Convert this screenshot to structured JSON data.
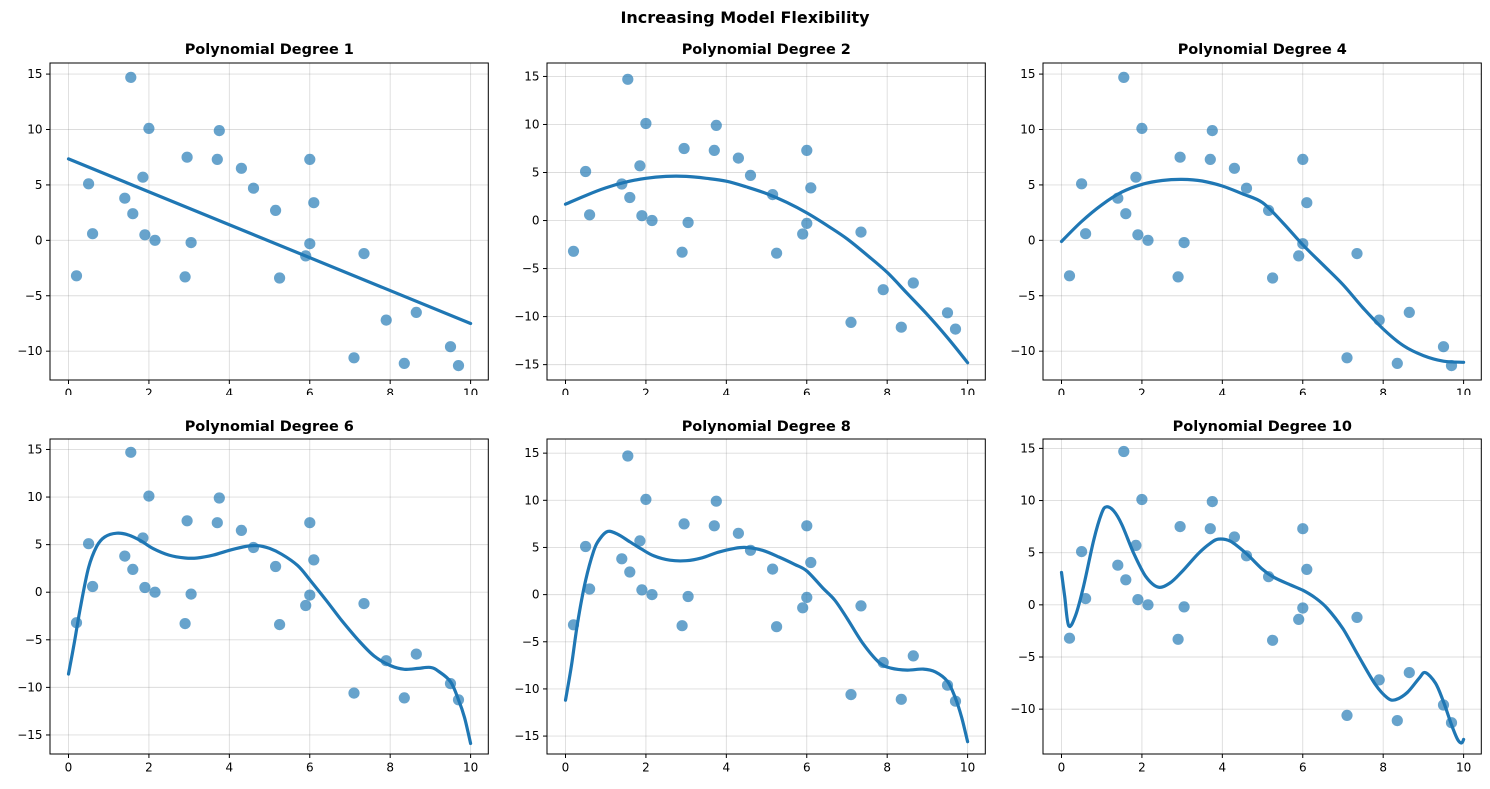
{
  "figure": {
    "title": "Increasing Model Flexibility"
  },
  "colors": {
    "curve": "#1f77b4",
    "scatter_fill": "rgba(31,119,180,0.68)",
    "grid": "rgba(128,128,128,0.28)",
    "spine": "#000000",
    "tick_label": "#000000",
    "background": "#ffffff"
  },
  "chart_data": {
    "type": "scatter",
    "title": "Increasing Model Flexibility",
    "xlabel": "",
    "ylabel": "",
    "legend": "none",
    "grid": true,
    "description": "Six subplots sharing the same 30 scatter points, each overlaid with a polynomial fit curve of increasing degree",
    "scatter": [
      [
        0.2,
        -3.2
      ],
      [
        0.5,
        5.1
      ],
      [
        0.6,
        0.6
      ],
      [
        1.4,
        3.8
      ],
      [
        1.55,
        14.7
      ],
      [
        1.6,
        2.4
      ],
      [
        1.85,
        5.7
      ],
      [
        1.9,
        0.5
      ],
      [
        2.0,
        10.1
      ],
      [
        2.15,
        0.0
      ],
      [
        2.9,
        -3.3
      ],
      [
        2.95,
        7.5
      ],
      [
        3.05,
        -0.2
      ],
      [
        3.7,
        7.3
      ],
      [
        3.75,
        9.9
      ],
      [
        4.3,
        6.5
      ],
      [
        4.6,
        4.7
      ],
      [
        5.15,
        2.7
      ],
      [
        5.25,
        -3.4
      ],
      [
        5.9,
        -1.4
      ],
      [
        6.0,
        -0.3
      ],
      [
        6.0,
        7.3
      ],
      [
        6.1,
        3.4
      ],
      [
        7.1,
        -10.6
      ],
      [
        7.35,
        -1.2
      ],
      [
        7.9,
        -7.2
      ],
      [
        8.35,
        -11.1
      ],
      [
        8.65,
        -6.5
      ],
      [
        9.5,
        -9.6
      ],
      [
        9.7,
        -11.3
      ]
    ],
    "xlim": [
      -0.46,
      10.44
    ],
    "xticks": [
      0,
      2,
      4,
      6,
      8,
      10
    ],
    "subplots": [
      {
        "title": "Polynomial Degree 1",
        "degree": 1,
        "ylim": [
          -12.6,
          16.0
        ],
        "yticks": [
          15,
          10,
          5,
          0,
          -5,
          -10
        ],
        "curve_points": [
          [
            0,
            7.35
          ],
          [
            10,
            -7.5
          ]
        ]
      },
      {
        "title": "Polynomial Degree 2",
        "degree": 2,
        "ylim": [
          -16.6,
          16.4
        ],
        "yticks": [
          15,
          10,
          5,
          0,
          -5,
          -10,
          -15
        ],
        "curve_points": [
          [
            0,
            1.7
          ],
          [
            0.5,
            2.6
          ],
          [
            1,
            3.4
          ],
          [
            1.5,
            4.0
          ],
          [
            2,
            4.4
          ],
          [
            2.5,
            4.6
          ],
          [
            3,
            4.6
          ],
          [
            3.5,
            4.4
          ],
          [
            4,
            4.1
          ],
          [
            4.5,
            3.5
          ],
          [
            5,
            2.8
          ],
          [
            5.5,
            1.9
          ],
          [
            6,
            0.8
          ],
          [
            6.5,
            -0.5
          ],
          [
            7,
            -1.9
          ],
          [
            7.5,
            -3.6
          ],
          [
            8,
            -5.4
          ],
          [
            8.5,
            -7.6
          ],
          [
            9,
            -9.8
          ],
          [
            9.5,
            -12.2
          ],
          [
            10,
            -14.8
          ]
        ]
      },
      {
        "title": "Polynomial Degree 4",
        "degree": 4,
        "ylim": [
          -12.6,
          16.0
        ],
        "yticks": [
          15,
          10,
          5,
          0,
          -5,
          -10
        ],
        "curve_points": [
          [
            0,
            -0.1
          ],
          [
            0.5,
            1.7
          ],
          [
            1,
            3.2
          ],
          [
            1.5,
            4.35
          ],
          [
            2,
            5.05
          ],
          [
            2.5,
            5.4
          ],
          [
            3,
            5.5
          ],
          [
            3.5,
            5.35
          ],
          [
            4,
            4.9
          ],
          [
            4.5,
            4.2
          ],
          [
            5,
            3.4
          ],
          [
            5.5,
            1.6
          ],
          [
            6,
            -0.4
          ],
          [
            6.5,
            -2.2
          ],
          [
            7,
            -4.0
          ],
          [
            7.5,
            -6.1
          ],
          [
            8,
            -8.0
          ],
          [
            8.5,
            -9.5
          ],
          [
            9,
            -10.4
          ],
          [
            9.5,
            -10.9
          ],
          [
            10,
            -11.0
          ]
        ]
      },
      {
        "title": "Polynomial Degree 6",
        "degree": 6,
        "ylim": [
          -17.0,
          16.1
        ],
        "yticks": [
          15,
          10,
          5,
          0,
          -5,
          -10,
          -15
        ],
        "curve_points": [
          [
            0,
            -8.6
          ],
          [
            0.15,
            -5.2
          ],
          [
            0.3,
            -1.5
          ],
          [
            0.5,
            2.6
          ],
          [
            0.7,
            4.8
          ],
          [
            0.9,
            5.8
          ],
          [
            1.2,
            6.2
          ],
          [
            1.5,
            6.0
          ],
          [
            1.8,
            5.4
          ],
          [
            2.1,
            4.6
          ],
          [
            2.5,
            3.9
          ],
          [
            2.9,
            3.6
          ],
          [
            3.2,
            3.6
          ],
          [
            3.6,
            3.9
          ],
          [
            4.0,
            4.4
          ],
          [
            4.4,
            4.8
          ],
          [
            4.7,
            4.9
          ],
          [
            5.0,
            4.6
          ],
          [
            5.3,
            4.0
          ],
          [
            5.7,
            2.8
          ],
          [
            6.0,
            1.3
          ],
          [
            6.4,
            -0.8
          ],
          [
            6.8,
            -3.0
          ],
          [
            7.2,
            -5.0
          ],
          [
            7.6,
            -6.7
          ],
          [
            8.0,
            -7.7
          ],
          [
            8.35,
            -8.1
          ],
          [
            8.7,
            -8.0
          ],
          [
            9.0,
            -7.9
          ],
          [
            9.2,
            -8.3
          ],
          [
            9.5,
            -9.4
          ],
          [
            9.7,
            -11.3
          ],
          [
            9.85,
            -13.2
          ],
          [
            10,
            -15.9
          ]
        ]
      },
      {
        "title": "Polynomial Degree 8",
        "degree": 8,
        "ylim": [
          -16.9,
          16.5
        ],
        "yticks": [
          15,
          10,
          5,
          0,
          -5,
          -10,
          -15
        ],
        "curve_points": [
          [
            0,
            -11.2
          ],
          [
            0.15,
            -7.5
          ],
          [
            0.3,
            -3.0
          ],
          [
            0.5,
            1.5
          ],
          [
            0.7,
            4.6
          ],
          [
            0.85,
            5.9
          ],
          [
            1.05,
            6.7
          ],
          [
            1.3,
            6.4
          ],
          [
            1.6,
            5.6
          ],
          [
            1.9,
            4.8
          ],
          [
            2.2,
            4.1
          ],
          [
            2.6,
            3.65
          ],
          [
            3.0,
            3.6
          ],
          [
            3.4,
            3.9
          ],
          [
            3.8,
            4.5
          ],
          [
            4.2,
            4.9
          ],
          [
            4.5,
            5.0
          ],
          [
            4.9,
            4.7
          ],
          [
            5.3,
            4.0
          ],
          [
            5.7,
            3.2
          ],
          [
            6.0,
            2.5
          ],
          [
            6.4,
            0.7
          ],
          [
            6.7,
            -0.6
          ],
          [
            7.0,
            -2.5
          ],
          [
            7.4,
            -5.2
          ],
          [
            7.8,
            -7.2
          ],
          [
            8.1,
            -7.8
          ],
          [
            8.5,
            -8.0
          ],
          [
            8.9,
            -7.9
          ],
          [
            9.2,
            -8.2
          ],
          [
            9.5,
            -9.2
          ],
          [
            9.7,
            -11.0
          ],
          [
            9.85,
            -13.0
          ],
          [
            10,
            -15.6
          ]
        ]
      },
      {
        "title": "Polynomial Degree 10",
        "degree": 10,
        "ylim": [
          -14.3,
          15.9
        ],
        "yticks": [
          15,
          10,
          5,
          0,
          -5,
          -10
        ],
        "curve_points": [
          [
            0,
            3.1
          ],
          [
            0.08,
            0.8
          ],
          [
            0.18,
            -2.0
          ],
          [
            0.35,
            -1.0
          ],
          [
            0.55,
            1.8
          ],
          [
            0.8,
            6.2
          ],
          [
            1.0,
            8.8
          ],
          [
            1.12,
            9.4
          ],
          [
            1.3,
            9.0
          ],
          [
            1.5,
            7.7
          ],
          [
            1.8,
            4.9
          ],
          [
            2.1,
            2.7
          ],
          [
            2.4,
            1.7
          ],
          [
            2.7,
            2.1
          ],
          [
            3.0,
            3.2
          ],
          [
            3.4,
            4.9
          ],
          [
            3.7,
            5.9
          ],
          [
            3.9,
            6.3
          ],
          [
            4.2,
            6.1
          ],
          [
            4.6,
            4.9
          ],
          [
            5.0,
            3.4
          ],
          [
            5.3,
            2.6
          ],
          [
            5.7,
            1.9
          ],
          [
            6.0,
            1.4
          ],
          [
            6.3,
            0.7
          ],
          [
            6.6,
            -0.3
          ],
          [
            7.0,
            -2.3
          ],
          [
            7.4,
            -5.0
          ],
          [
            7.8,
            -7.6
          ],
          [
            8.1,
            -8.9
          ],
          [
            8.3,
            -9.1
          ],
          [
            8.6,
            -8.4
          ],
          [
            8.9,
            -7.0
          ],
          [
            9.05,
            -6.5
          ],
          [
            9.3,
            -7.5
          ],
          [
            9.5,
            -9.3
          ],
          [
            9.7,
            -11.5
          ],
          [
            9.85,
            -12.9
          ],
          [
            9.95,
            -13.25
          ],
          [
            10,
            -12.9
          ]
        ]
      }
    ]
  }
}
